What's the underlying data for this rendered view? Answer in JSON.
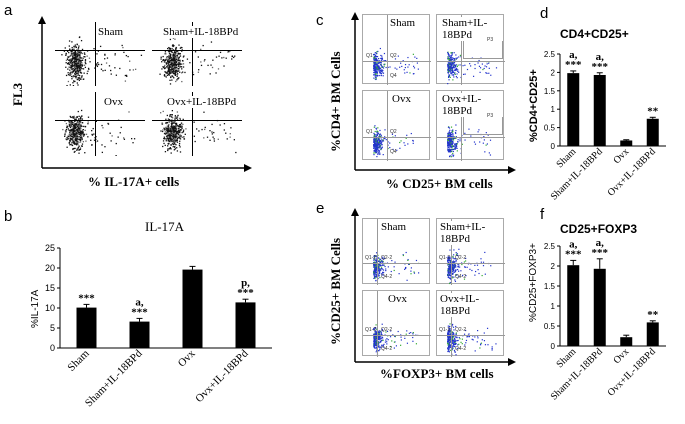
{
  "panels": {
    "a": {
      "letter": "a",
      "ylabel": "FL3",
      "xlabel": "% IL-17A+ cells",
      "plots": [
        "Sham",
        "Sham+IL-18BPd",
        "Ovx",
        "Ovx+IL-18BPd"
      ]
    },
    "b": {
      "letter": "b",
      "title": "IL-17A",
      "ylabel": "%IL-17A",
      "yticks": [
        "0",
        "5",
        "10",
        "15",
        "20",
        "25"
      ],
      "categories": [
        "Sham",
        "Sham+IL-18BPd",
        "Ovx",
        "Ovx+IL-18BPd"
      ],
      "sig_top": [
        "",
        "a,",
        "",
        "p,"
      ],
      "sig_bottom": [
        "***",
        "***",
        "",
        "***"
      ]
    },
    "c": {
      "letter": "c",
      "ylabel": "%CD4+ BM Cells",
      "xlabel": "% CD25+ BM cells",
      "plots": [
        "Sham",
        "Sham+IL-18BPd",
        "Ovx",
        "Ovx+IL-18BPd"
      ],
      "gates": [
        "Q1",
        "Q2",
        "Q4",
        "P3"
      ]
    },
    "d": {
      "letter": "d",
      "title": "CD4+CD25+",
      "ylabel": "%CD4+CD25+",
      "yticks": [
        "0",
        "0.5",
        "1",
        "1.5",
        "2",
        "2.5"
      ],
      "categories": [
        "Sham",
        "Sham+IL-18BPd",
        "Ovx",
        "Ovx+IL-18BPd"
      ],
      "sig_top": [
        "a,",
        "a,",
        "",
        ""
      ],
      "sig_bottom": [
        "***",
        "***",
        "",
        "**"
      ]
    },
    "e": {
      "letter": "e",
      "ylabel": "%CD25+ BM Cells",
      "xlabel": "%FOXP3+ BM cells",
      "plots": [
        "Sham",
        "Sham+IL-18BPd",
        "Ovx",
        "Ovx+IL-18BPd"
      ],
      "gates": [
        "Q1-2",
        "Q2-2",
        "Q4-2"
      ]
    },
    "f": {
      "letter": "f",
      "title": "CD25+FOXP3",
      "ylabel": "%CD25+FOXP3+",
      "yticks": [
        "0",
        "0.5",
        "1",
        "1.5",
        "2",
        "2.5"
      ],
      "categories": [
        "Sham",
        "Sham+IL-18BPd",
        "Ovx",
        "Ovx+IL-18BPd"
      ],
      "sig_top": [
        "a,",
        "a,",
        "",
        ""
      ],
      "sig_bottom": [
        "***",
        "***",
        "",
        "**"
      ]
    }
  },
  "chart_data": [
    {
      "id": "b",
      "type": "bar",
      "title": "IL-17A",
      "categories": [
        "Sham",
        "Sham+IL-18BPd",
        "Ovx",
        "Ovx+IL-18BPd"
      ],
      "values": [
        10.1,
        6.6,
        19.6,
        11.4
      ],
      "errors": [
        0.8,
        0.8,
        0.8,
        0.8
      ],
      "xlabel": "",
      "ylabel": "%IL-17A",
      "ylim": [
        0,
        25
      ]
    },
    {
      "id": "d",
      "type": "bar",
      "title": "CD4+CD25+",
      "categories": [
        "Sham",
        "Sham+IL-18BPd",
        "Ovx",
        "Ovx+IL-18BPd"
      ],
      "values": [
        1.98,
        1.93,
        0.15,
        0.74
      ],
      "errors": [
        0.06,
        0.06,
        0.02,
        0.04
      ],
      "xlabel": "",
      "ylabel": "%CD4+CD25+",
      "ylim": [
        0,
        2.5
      ]
    },
    {
      "id": "f",
      "type": "bar",
      "title": "CD25+FOXP3",
      "categories": [
        "Sham",
        "Sham+IL-18BPd",
        "Ovx",
        "Ovx+IL-18BPd"
      ],
      "values": [
        2.02,
        1.93,
        0.22,
        0.59
      ],
      "errors": [
        0.12,
        0.25,
        0.05,
        0.04
      ],
      "xlabel": "",
      "ylabel": "%CD25+FOXP3+",
      "ylim": [
        0,
        2.5
      ]
    }
  ]
}
